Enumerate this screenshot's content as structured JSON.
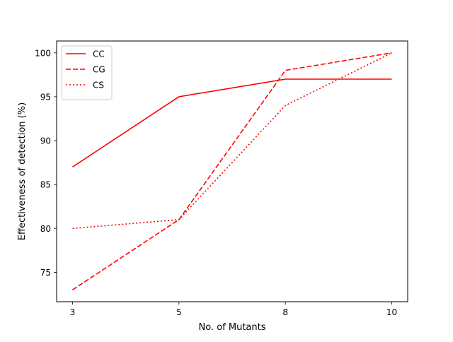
{
  "chart_data": {
    "type": "line",
    "title": "",
    "xlabel": "No. of Mutants",
    "ylabel": "Effectiveness of detection (%)",
    "categories": [
      "3",
      "5",
      "8",
      "10"
    ],
    "ylim": [
      71.65,
      101.35
    ],
    "yticks": [
      75,
      80,
      85,
      90,
      95,
      100
    ],
    "grid": false,
    "legend_position": "top-left",
    "series": [
      {
        "name": "CC",
        "values": [
          87,
          95,
          97,
          97
        ],
        "color": "#ff0000",
        "style": "solid"
      },
      {
        "name": "CG",
        "values": [
          73,
          81,
          98,
          100
        ],
        "color": "#ff0000",
        "style": "dashed"
      },
      {
        "name": "CS",
        "values": [
          80,
          81,
          94,
          100
        ],
        "color": "#ff0000",
        "style": "dotted"
      }
    ]
  }
}
